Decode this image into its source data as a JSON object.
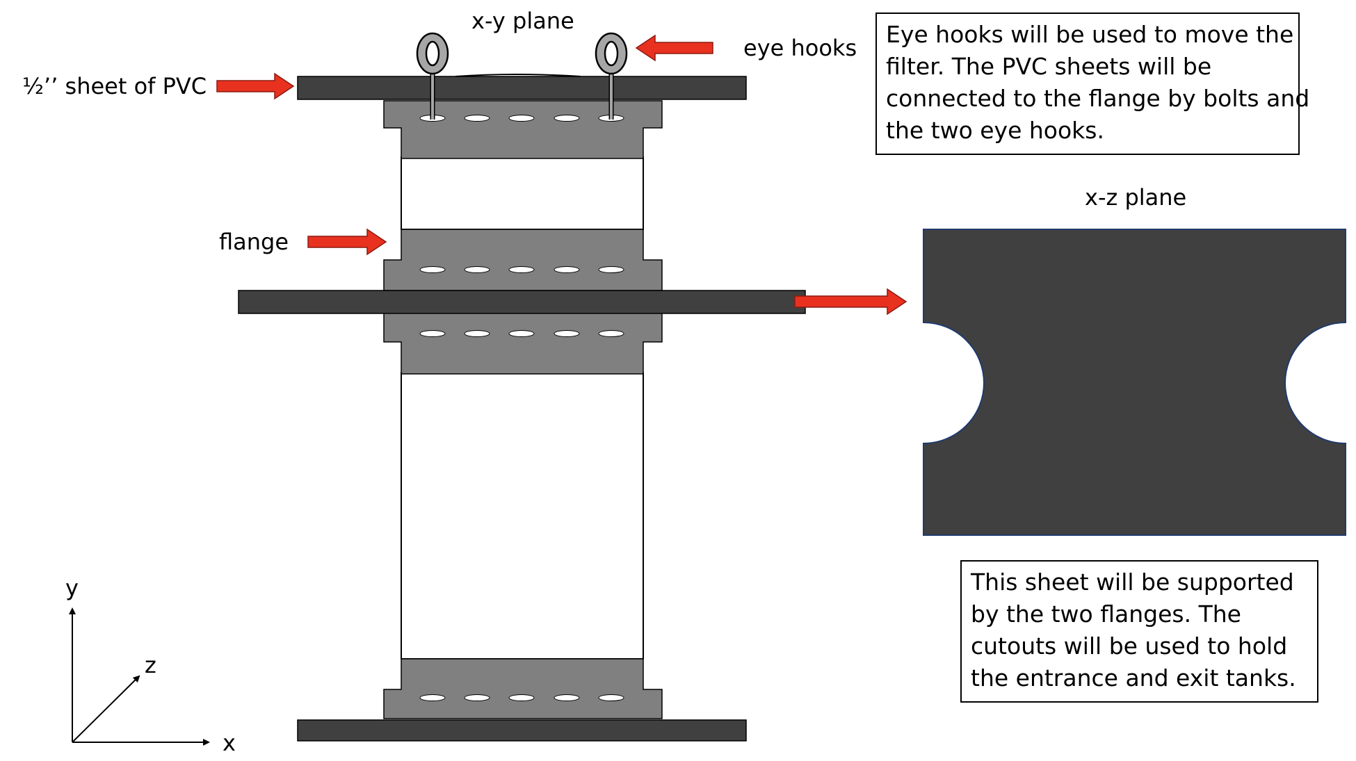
{
  "labels": {
    "xy_plane": "x-y plane",
    "xz_plane": "x-z plane",
    "eye_hooks": "eye hooks",
    "pvc_sheet": "½’’ sheet of PVC",
    "flange": "flange"
  },
  "notes": {
    "top": [
      "Eye hooks will be used to move the",
      "filter. The PVC sheets will be",
      "connected to the flange by bolts and",
      "the two eye hooks."
    ],
    "bottom": [
      "This sheet will be supported",
      "by the two flanges. The",
      "cutouts will be used to hold",
      "the entrance and exit tanks."
    ]
  },
  "axes": {
    "x": "x",
    "y": "y",
    "z": "z"
  },
  "colors": {
    "sheet": "#404040",
    "flange": "#808080",
    "arrow": "#e8311f",
    "hook": "#a6a6a6",
    "outline": "#000000"
  }
}
